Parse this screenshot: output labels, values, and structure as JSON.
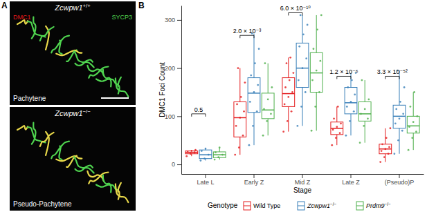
{
  "panel_labels": [
    "A",
    "B"
  ],
  "panel_a": {
    "images": [
      {
        "genotype": "Zcwpw1+/+",
        "stage": "Pachytene",
        "channels": [
          "DMC1",
          "SYCP3"
        ]
      },
      {
        "genotype": "Zcwpw1−/−",
        "stage": "Pseudo-Pachytene"
      }
    ]
  },
  "chart_data": {
    "type": "box",
    "x_label": "Stage",
    "y_label": "DMC1 Foci Count",
    "legend_title": "Genotype",
    "legend": "bottom",
    "grid": false,
    "categories": [
      "Late L",
      "Early Z",
      "Mid Z",
      "Late Z",
      "(Pseudo)P"
    ],
    "ylim": [
      -20,
      330
    ],
    "yticks": [
      0,
      100,
      200,
      300
    ],
    "series": [
      {
        "name": "Wild Type",
        "color": "#e41a1c",
        "min": [
          17,
          20,
          68,
          40,
          5
        ],
        "q1": [
          22,
          57,
          120,
          62,
          22
        ],
        "median": [
          25,
          97,
          147,
          75,
          32
        ],
        "q3": [
          28,
          130,
          180,
          88,
          42
        ],
        "max": [
          30,
          200,
          222,
          120,
          75
        ],
        "points": [
          [
            17,
            22,
            25,
            26,
            28,
            30
          ],
          [
            20,
            35,
            60,
            80,
            97,
            110,
            125,
            140,
            170,
            200
          ],
          [
            68,
            90,
            110,
            125,
            140,
            150,
            160,
            175,
            190,
            210,
            222
          ],
          [
            40,
            55,
            65,
            72,
            78,
            85,
            95,
            120
          ],
          [
            5,
            15,
            22,
            28,
            32,
            36,
            42,
            55,
            75
          ]
        ]
      },
      {
        "name": "Zcwpw1−/−",
        "color": "#377eb8",
        "min": [
          8,
          40,
          80,
          60,
          22
        ],
        "q1": [
          12,
          108,
          160,
          105,
          75
        ],
        "median": [
          20,
          148,
          200,
          128,
          100
        ],
        "q3": [
          30,
          180,
          252,
          160,
          123
        ],
        "max": [
          33,
          272,
          310,
          190,
          195
        ],
        "points": [
          [
            8,
            12,
            20,
            28,
            33
          ],
          [
            40,
            80,
            110,
            130,
            150,
            165,
            185,
            210,
            240,
            272
          ],
          [
            80,
            120,
            150,
            175,
            200,
            220,
            245,
            270,
            290,
            310
          ],
          [
            60,
            90,
            110,
            120,
            130,
            145,
            160,
            175,
            190
          ],
          [
            22,
            50,
            70,
            85,
            95,
            105,
            115,
            130,
            160,
            195
          ]
        ]
      },
      {
        "name": "Prdm9−/−",
        "color": "#4daf4a",
        "min": [
          10,
          60,
          70,
          45,
          30
        ],
        "q1": [
          14,
          95,
          150,
          90,
          65
        ],
        "median": [
          20,
          113,
          190,
          105,
          80
        ],
        "q3": [
          26,
          148,
          232,
          130,
          100
        ],
        "max": [
          35,
          210,
          310,
          175,
          150
        ],
        "points": [
          [
            10,
            15,
            20,
            25,
            35
          ],
          [
            60,
            90,
            105,
            115,
            135,
            160,
            210
          ],
          [
            70,
            120,
            150,
            175,
            195,
            215,
            240,
            280,
            310
          ],
          [
            45,
            80,
            95,
            105,
            115,
            135,
            175
          ],
          [
            30,
            55,
            68,
            78,
            88,
            100,
            120,
            150
          ]
        ]
      }
    ],
    "annotations": [
      {
        "category": "Late L",
        "y": 105,
        "text": "0.5"
      },
      {
        "category": "Early Z",
        "y": 268,
        "text": "2.0 × 10⁻³"
      },
      {
        "category": "Mid Z",
        "y": 315,
        "text": "6.0 × 10⁻¹⁰"
      },
      {
        "category": "Late Z",
        "y": 183,
        "text": "1.2 × 10⁻⁶"
      },
      {
        "category": "(Pseudo)P",
        "y": 183,
        "text": "3.3 × 10⁻⁵²"
      }
    ]
  }
}
